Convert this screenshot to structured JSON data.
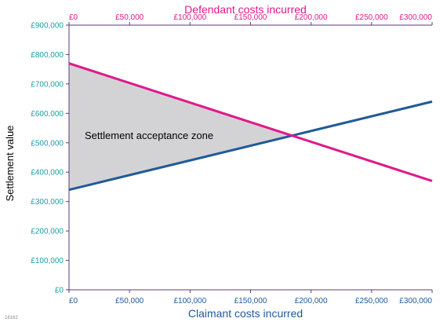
{
  "colors": {
    "claimant": "#1f5a99",
    "defendant": "#e0198a",
    "y_axis_ticks": "#1a9fa8",
    "axis_line": "#5a3e7a",
    "zone_fill": "#d3d3d5"
  },
  "chart_data": {
    "type": "line",
    "x_bottom": {
      "label": "Claimant costs incurred",
      "ticks": [
        0,
        50000,
        100000,
        150000,
        200000,
        250000,
        300000
      ],
      "tick_labels": [
        "£0",
        "£50,000",
        "£100,000",
        "£150,000",
        "£200,000",
        "£250,000",
        "£300,000"
      ],
      "range": [
        0,
        300000
      ]
    },
    "x_top": {
      "label": "Defendant costs incurred",
      "ticks": [
        0,
        50000,
        100000,
        150000,
        200000,
        250000,
        300000
      ],
      "tick_labels": [
        "£0",
        "£50,000",
        "£100,000",
        "£150,000",
        "£200,000",
        "£250,000",
        "£300,000"
      ],
      "range": [
        0,
        300000
      ]
    },
    "y": {
      "label": "Settlement value",
      "ticks": [
        0,
        100000,
        200000,
        300000,
        400000,
        500000,
        600000,
        700000,
        800000,
        900000
      ],
      "tick_labels": [
        "£0",
        "£100,000",
        "£200,000",
        "£300,000",
        "£400,000",
        "£500,000",
        "£600,000",
        "£700,000",
        "£800,000",
        "£900,000"
      ],
      "range": [
        0,
        900000
      ]
    },
    "series": [
      {
        "axis": "bottom",
        "x": [
          0,
          300000
        ],
        "y": [
          340000,
          640000
        ]
      },
      {
        "axis": "top",
        "x": [
          0,
          300000
        ],
        "y": [
          770000,
          370000
        ]
      }
    ],
    "shaded_region": {
      "label": "Settlement acceptance zone",
      "vertices": [
        [
          0,
          770000
        ],
        [
          184000,
          524000
        ],
        [
          0,
          340000
        ]
      ]
    },
    "grid": false
  },
  "reference_code": "18162"
}
